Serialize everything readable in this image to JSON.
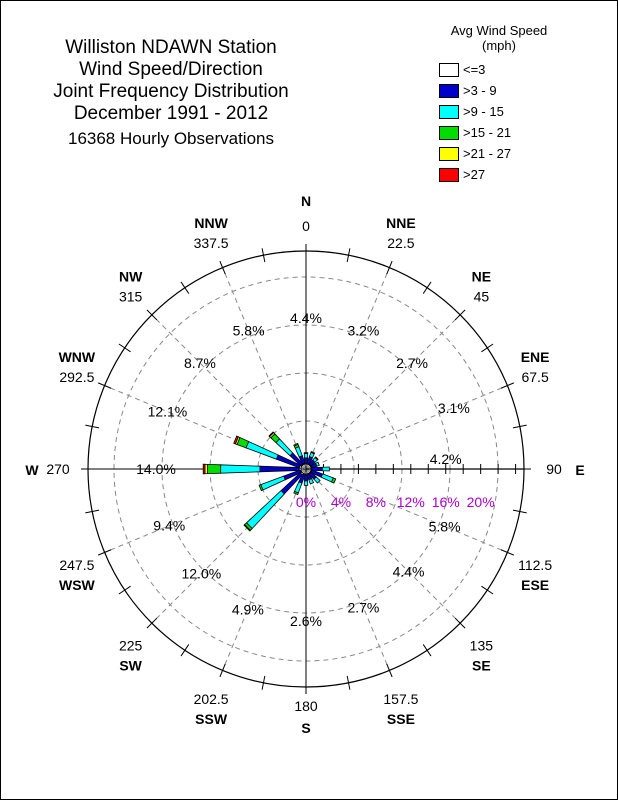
{
  "title_lines": [
    "Williston NDAWN Station",
    "Wind Speed/Direction",
    "Joint Frequency Distribution",
    "December 1991 - 2012"
  ],
  "subtitle": "16368 Hourly Observations",
  "legend": {
    "title_line1": "Avg Wind Speed",
    "title_line2": "(mph)",
    "items": [
      {
        "label": "<=3",
        "color": "#ffffff"
      },
      {
        "label": ">3 - 9",
        "color": "#0000cc"
      },
      {
        "label": ">9 - 15",
        "color": "#00ffff"
      },
      {
        "label": ">15 - 21",
        "color": "#00dd00"
      },
      {
        "label": ">21 - 27",
        "color": "#ffff00"
      },
      {
        "label": ">27",
        "color": "#ff0000"
      }
    ]
  },
  "chart_data": {
    "type": "wind-rose",
    "radial_axis": {
      "ticks": [
        "0%",
        "4%",
        "8%",
        "12%",
        "16%",
        "20%"
      ],
      "max": 20,
      "label_color": "#aa00cc"
    },
    "directions": [
      {
        "angle": 0,
        "deg_label": "0",
        "compass": "N",
        "pct_label": "",
        "total": 1.3,
        "parts": [
          0.1,
          0.6,
          0.5,
          0.1,
          0.0,
          0.0
        ]
      },
      {
        "angle": 22.5,
        "deg_label": "22.5",
        "compass": "NNE",
        "pct_label": "3.2%",
        "total": 1.5,
        "parts": [
          0.1,
          0.8,
          0.5,
          0.1,
          0.0,
          0.0
        ]
      },
      {
        "angle": 45,
        "deg_label": "45",
        "compass": "NE",
        "pct_label": "2.7%",
        "total": 1.2,
        "parts": [
          0.1,
          0.6,
          0.4,
          0.1,
          0.0,
          0.0
        ]
      },
      {
        "angle": 67.5,
        "deg_label": "67.5",
        "compass": "ENE",
        "pct_label": "3.1%",
        "total": 1.0,
        "parts": [
          0.1,
          0.6,
          0.3,
          0.0,
          0.0,
          0.0
        ]
      },
      {
        "angle": 90,
        "deg_label": "90",
        "compass": "E",
        "pct_label": "4.2%",
        "total": 2.1,
        "parts": [
          0.1,
          1.2,
          0.8,
          0.0,
          0.0,
          0.0
        ]
      },
      {
        "angle": 112.5,
        "deg_label": "112.5",
        "compass": "ESE",
        "pct_label": "5.8%",
        "total": 3.0,
        "parts": [
          0.1,
          1.3,
          1.3,
          0.3,
          0.0,
          0.0
        ]
      },
      {
        "angle": 135,
        "deg_label": "135",
        "compass": "SE",
        "pct_label": "4.4%",
        "total": 1.5,
        "parts": [
          0.1,
          0.8,
          0.6,
          0.0,
          0.0,
          0.0
        ]
      },
      {
        "angle": 157.5,
        "deg_label": "157.5",
        "compass": "SSE",
        "pct_label": "2.7%",
        "total": 1.2,
        "parts": [
          0.1,
          0.6,
          0.5,
          0.0,
          0.0,
          0.0
        ]
      },
      {
        "angle": 180,
        "deg_label": "180",
        "compass": "S",
        "pct_label": "2.6%",
        "total": 1.3,
        "parts": [
          0.1,
          0.7,
          0.5,
          0.0,
          0.0,
          0.0
        ]
      },
      {
        "angle": 202.5,
        "deg_label": "202.5",
        "compass": "SSW",
        "pct_label": "4.9%",
        "total": 2.5,
        "parts": [
          0.1,
          1.0,
          1.2,
          0.2,
          0.0,
          0.0
        ]
      },
      {
        "angle": 225,
        "deg_label": "225",
        "compass": "SW",
        "pct_label": "12.0%",
        "total": 9.0,
        "parts": [
          0.2,
          3.0,
          5.4,
          0.3,
          0.1,
          0.0
        ]
      },
      {
        "angle": 247.5,
        "deg_label": "247.5",
        "compass": "WSW",
        "pct_label": "9.4%",
        "total": 5.1,
        "parts": [
          0.1,
          2.0,
          2.8,
          0.2,
          0.0,
          0.0
        ]
      },
      {
        "angle": 270,
        "deg_label": "270",
        "compass": "W",
        "pct_label": "14.0%",
        "total": 11.2,
        "parts": [
          0.2,
          4.5,
          4.5,
          1.5,
          0.3,
          0.2
        ]
      },
      {
        "angle": 292.5,
        "deg_label": "292.5",
        "compass": "WNW",
        "pct_label": "12.1%",
        "total": 8.2,
        "parts": [
          0.2,
          2.8,
          3.7,
          1.1,
          0.2,
          0.2
        ]
      },
      {
        "angle": 315,
        "deg_label": "315",
        "compass": "NW",
        "pct_label": "8.7%",
        "total": 5.1,
        "parts": [
          0.1,
          1.7,
          2.2,
          0.8,
          0.2,
          0.1
        ]
      },
      {
        "angle": 337.5,
        "deg_label": "337.5",
        "compass": "NNW",
        "pct_label": "5.8%",
        "total": 2.5,
        "parts": [
          0.1,
          0.9,
          1.1,
          0.3,
          0.1,
          0.0
        ]
      }
    ],
    "center_label": "4.4%"
  }
}
